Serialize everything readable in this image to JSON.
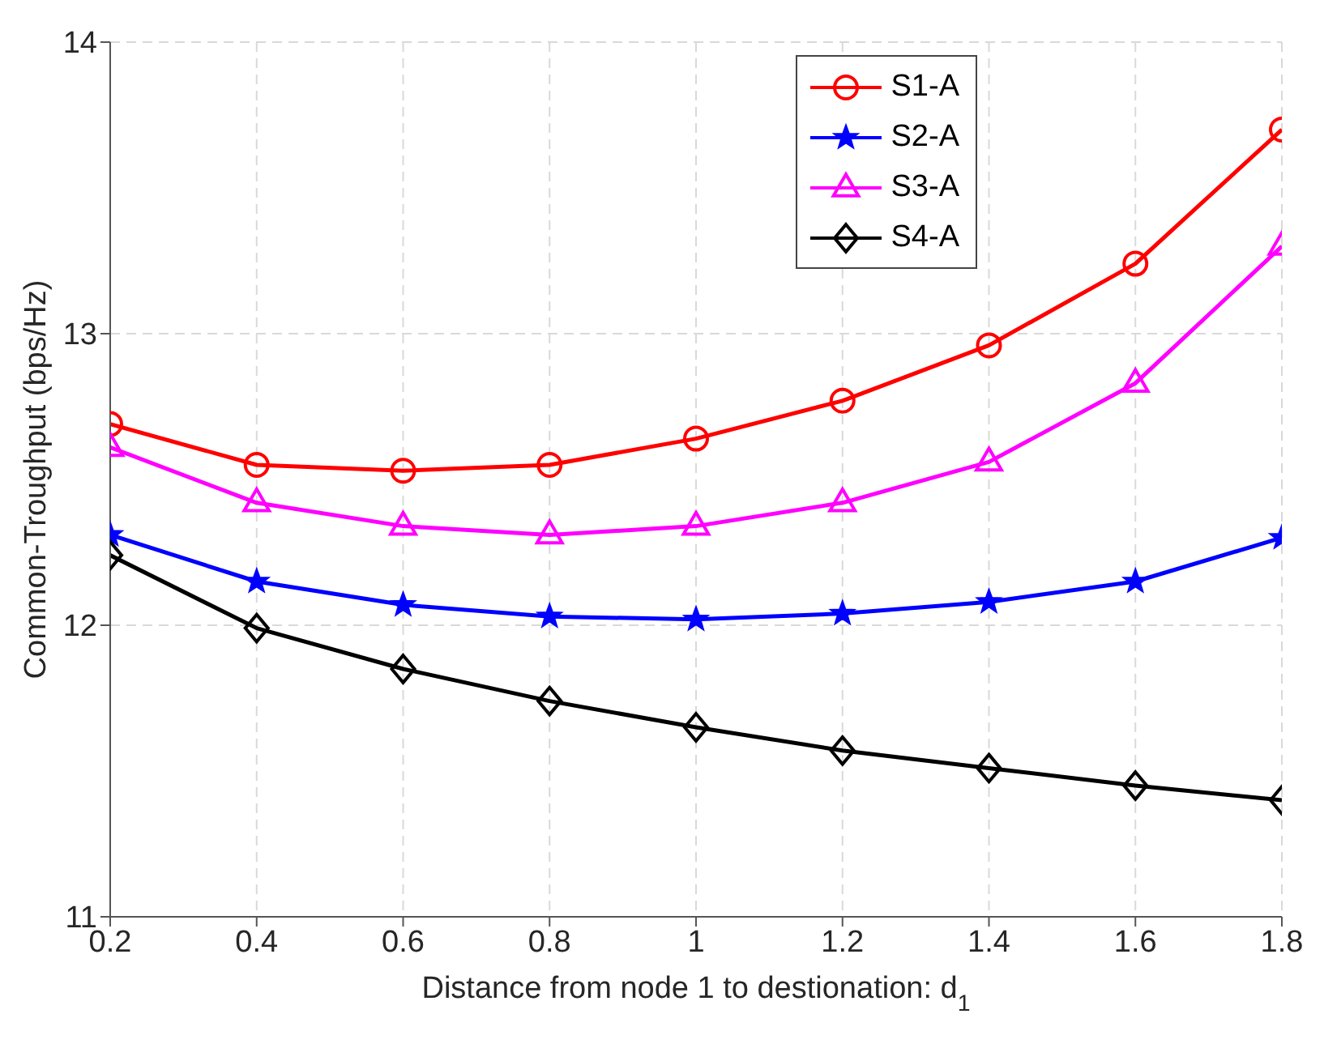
{
  "chart_data": {
    "type": "line",
    "xlabel": "Distance from node 1 to destionation: d$_{1}$",
    "ylabel": "Common-Troughput (bps/Hz)",
    "x": [
      0.2,
      0.4,
      0.6,
      0.8,
      1,
      1.2,
      1.4,
      1.6,
      1.8
    ],
    "series": [
      {
        "name": "S1-A",
        "color": "#ff0000",
        "marker": "circle",
        "values": [
          12.69,
          12.55,
          12.53,
          12.55,
          12.64,
          12.77,
          12.96,
          13.24,
          13.7
        ]
      },
      {
        "name": "S2-A",
        "color": "#0000ff",
        "marker": "star",
        "values": [
          12.31,
          12.15,
          12.07,
          12.03,
          12.02,
          12.04,
          12.08,
          12.15,
          12.3
        ]
      },
      {
        "name": "S3-A",
        "color": "#ff00ff",
        "marker": "triangle",
        "values": [
          12.61,
          12.42,
          12.34,
          12.31,
          12.34,
          12.42,
          12.56,
          12.83,
          13.3
        ]
      },
      {
        "name": "S4-A",
        "color": "#000000",
        "marker": "diamond",
        "values": [
          12.24,
          11.99,
          11.85,
          11.74,
          11.65,
          11.57,
          11.51,
          11.45,
          11.4
        ]
      }
    ],
    "xlim": [
      0.2,
      1.8
    ],
    "xticks": [
      0.2,
      0.4,
      0.6,
      0.8,
      1,
      1.2,
      1.4,
      1.6,
      1.8
    ],
    "ylim": [
      11,
      14
    ],
    "yticks": [
      11,
      12,
      13,
      14
    ],
    "grid": true,
    "legend": "top right",
    "line_style": "solid"
  }
}
